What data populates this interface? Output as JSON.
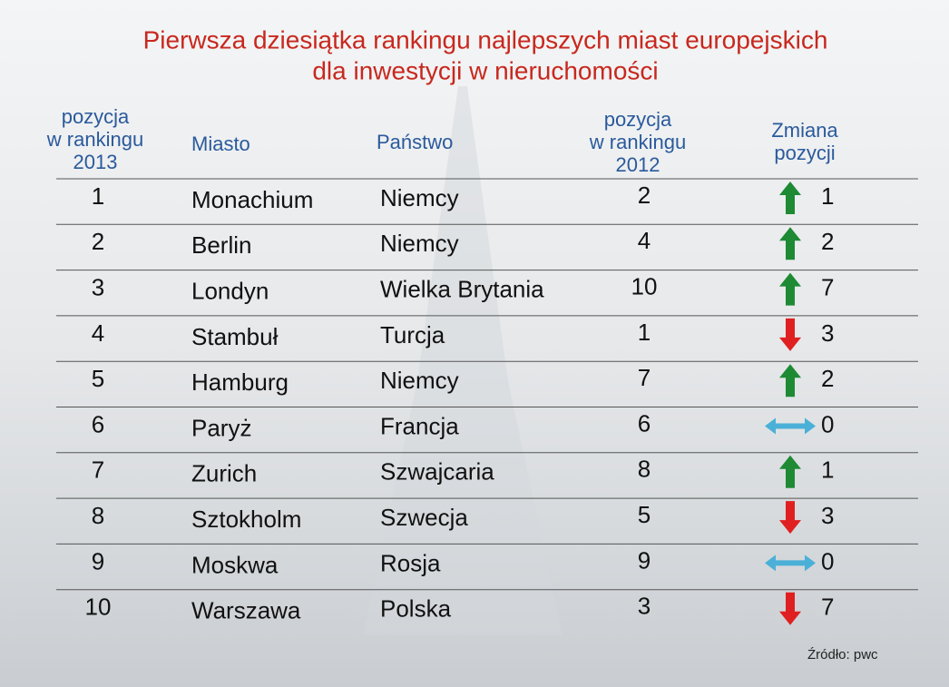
{
  "header": {
    "title": [
      "Pierwsza dziesiątka rankingu najlepszych miast europejskich",
      "dla inwestycji w nieruchomości"
    ]
  },
  "table": {
    "columns": [
      [
        "pozycja",
        "w rankingu",
        "2013"
      ],
      [
        "Miasto"
      ],
      [
        "Państwo"
      ],
      [
        "pozycja",
        "w rankingu",
        "2012"
      ],
      [
        "Zmiana",
        "pozycji"
      ]
    ],
    "rows": [
      [
        1,
        "Monachium",
        "Niemcy",
        2,
        1
      ],
      [
        2,
        "Berlin",
        "Niemcy",
        4,
        2
      ],
      [
        3,
        "Londyn",
        "Wielka Brytania",
        10,
        7
      ],
      [
        4,
        "Stambuł",
        "Turcja",
        1,
        3
      ],
      [
        5,
        "Hamburg",
        "Niemcy",
        7,
        2
      ],
      [
        6,
        "Paryż",
        "Francja",
        6,
        0
      ],
      [
        7,
        "Zurich",
        "Szwajcaria",
        8,
        1
      ],
      [
        8,
        "Sztokholm",
        "Szwecja",
        5,
        3
      ],
      [
        9,
        "Moskwa",
        "Rosja",
        9,
        0
      ],
      [
        10,
        "Warszawa",
        "Polska",
        3,
        7
      ]
    ]
  },
  "footer": {
    "source": "Źródło: pwc"
  }
}
